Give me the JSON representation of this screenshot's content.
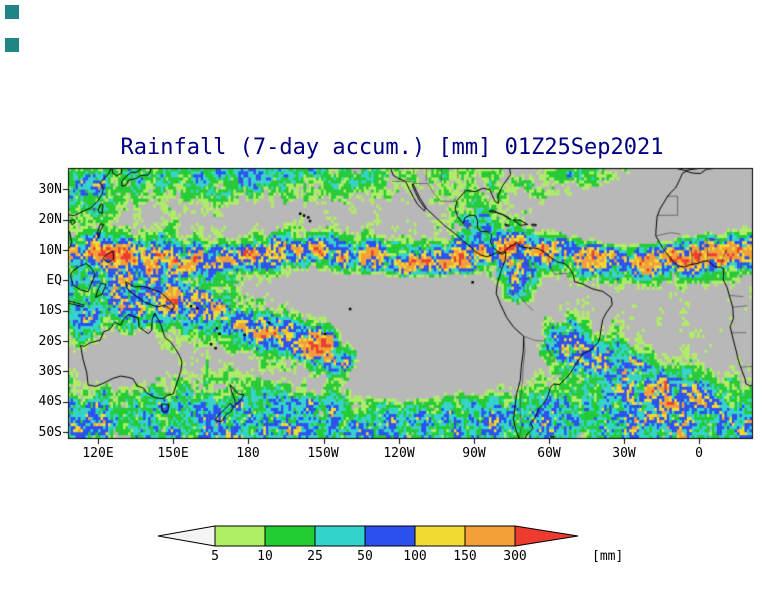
{
  "title": "Rainfall (7-day accum.) [mm] 01Z25Sep2021",
  "styles": {
    "title_color": "#000080",
    "label_color": "#000000",
    "corner_marker_color": "#1f8585",
    "page_background": "#ffffff"
  },
  "map": {
    "background_color": "#b8b8b8",
    "coastline_color": "#000000",
    "border_color": "#3a3a3a",
    "frame_color": "#000000",
    "lon_range": [
      108,
      381
    ],
    "lat_range": [
      -52,
      37
    ],
    "lat_ticks": [
      {
        "label": "30N",
        "lat": 30
      },
      {
        "label": "20N",
        "lat": 20
      },
      {
        "label": "10N",
        "lat": 10
      },
      {
        "label": "EQ",
        "lat": 0
      },
      {
        "label": "10S",
        "lat": -10
      },
      {
        "label": "20S",
        "lat": -20
      },
      {
        "label": "30S",
        "lat": -30
      },
      {
        "label": "40S",
        "lat": -40
      },
      {
        "label": "50S",
        "lat": -50
      }
    ],
    "lon_ticks": [
      {
        "label": "120E",
        "lon": 120
      },
      {
        "label": "150E",
        "lon": 150
      },
      {
        "label": "180",
        "lon": 180
      },
      {
        "label": "150W",
        "lon": 210
      },
      {
        "label": "120W",
        "lon": 240
      },
      {
        "label": "90W",
        "lon": 270
      },
      {
        "label": "60W",
        "lon": 300
      },
      {
        "label": "30W",
        "lon": 330
      },
      {
        "label": "0",
        "lon": 360
      }
    ]
  },
  "legend": {
    "unit": "[mm]",
    "thresholds": [
      5,
      10,
      25,
      50,
      100,
      150,
      300
    ],
    "palette": {
      "below": "#f4f4f4",
      "bin_5_10": "#b0ee66",
      "bin_10_25": "#22cc33",
      "bin_25_50": "#33d4cc",
      "bin_50_100": "#2b50ee",
      "bin_100_150": "#f2dc33",
      "bin_150_300": "#f2a037",
      "above": "#ee3b30"
    }
  }
}
